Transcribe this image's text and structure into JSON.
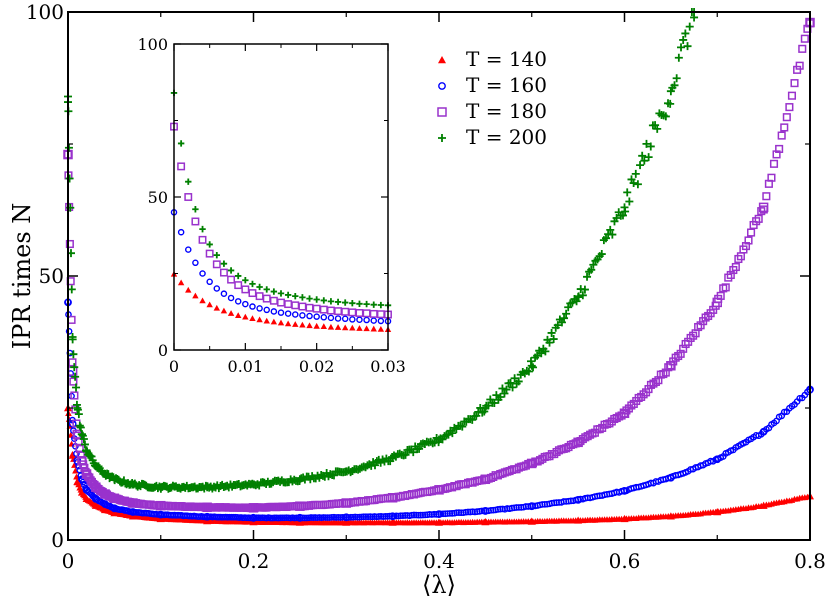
{
  "chart_data": [
    {
      "id": "main",
      "type": "scatter",
      "title": "",
      "xlabel": "⟨λ⟩",
      "ylabel": "IPR times N",
      "xlim": [
        0,
        0.8
      ],
      "ylim": [
        0,
        100
      ],
      "xticks": [
        0,
        0.2,
        0.4,
        0.6,
        0.8
      ],
      "xtick_labels": [
        "0",
        "0.2",
        "0.4",
        "0.6",
        "0.8"
      ],
      "yticks": [
        0,
        50,
        100
      ],
      "ytick_labels": [
        "0",
        "50",
        "100"
      ],
      "grid": false,
      "legend_position": "top-center",
      "series": [
        {
          "name": "T = 140",
          "color": "#ff0000",
          "marker": "triangle",
          "x": [
            0.0,
            0.005,
            0.01,
            0.015,
            0.02,
            0.03,
            0.04,
            0.05,
            0.07,
            0.1,
            0.15,
            0.2,
            0.25,
            0.3,
            0.35,
            0.4,
            0.45,
            0.5,
            0.55,
            0.6,
            0.65,
            0.7,
            0.75,
            0.8
          ],
          "y": [
            25,
            16,
            11,
            9,
            7.8,
            6.5,
            5.7,
            5.1,
            4.5,
            4.0,
            3.6,
            3.4,
            3.3,
            3.3,
            3.3,
            3.3,
            3.4,
            3.5,
            3.7,
            4.0,
            4.5,
            5.3,
            6.5,
            8.3
          ]
        },
        {
          "name": "T = 160",
          "color": "#0000ff",
          "marker": "circle",
          "x": [
            0.0,
            0.005,
            0.01,
            0.015,
            0.02,
            0.03,
            0.04,
            0.05,
            0.07,
            0.1,
            0.15,
            0.2,
            0.25,
            0.3,
            0.35,
            0.4,
            0.45,
            0.5,
            0.55,
            0.6,
            0.65,
            0.7,
            0.75,
            0.8
          ],
          "y": [
            45,
            22,
            15,
            11.5,
            9.5,
            7.8,
            6.8,
            6.0,
            5.3,
            4.8,
            4.4,
            4.2,
            4.2,
            4.3,
            4.5,
            4.9,
            5.5,
            6.4,
            7.6,
            9.3,
            11.8,
            15.3,
            20.5,
            28.5
          ]
        },
        {
          "name": "T = 180",
          "color": "#9932cc",
          "marker": "square",
          "x": [
            0.0,
            0.005,
            0.01,
            0.015,
            0.02,
            0.03,
            0.04,
            0.05,
            0.07,
            0.1,
            0.15,
            0.2,
            0.25,
            0.3,
            0.35,
            0.4,
            0.45,
            0.5,
            0.55,
            0.6,
            0.65,
            0.7,
            0.75,
            0.8
          ],
          "y": [
            73,
            32,
            20,
            15,
            12.5,
            10,
            8.7,
            7.9,
            7.0,
            6.5,
            6.2,
            6.1,
            6.4,
            7.0,
            8.0,
            9.5,
            11.5,
            14.5,
            18.5,
            24,
            33,
            45,
            63,
            98
          ]
        },
        {
          "name": "T = 200",
          "color": "#008000",
          "marker": "plus",
          "x": [
            0.0,
            0.005,
            0.01,
            0.015,
            0.02,
            0.03,
            0.04,
            0.05,
            0.07,
            0.1,
            0.15,
            0.2,
            0.25,
            0.3,
            0.35,
            0.4,
            0.45,
            0.5,
            0.55,
            0.6,
            0.65,
            0.675
          ],
          "y": [
            84,
            38,
            25,
            20,
            17,
            14,
            12.5,
            11.5,
            10.5,
            10.0,
            10.0,
            10.5,
            11.5,
            13,
            15.5,
            19,
            25,
            33,
            46,
            63,
            85,
            100
          ]
        }
      ]
    },
    {
      "id": "inset",
      "type": "scatter",
      "title": "",
      "xlabel": "",
      "ylabel": "",
      "xlim": [
        0,
        0.03
      ],
      "ylim": [
        0,
        100
      ],
      "xticks": [
        0,
        0.01,
        0.02,
        0.03
      ],
      "xtick_labels": [
        "0",
        "0.01",
        "0.02",
        "0.03"
      ],
      "yticks": [
        0,
        50,
        100
      ],
      "ytick_labels": [
        "0",
        "50",
        "100"
      ],
      "grid": false,
      "series": [
        {
          "name": "T = 140",
          "color": "#ff0000",
          "marker": "triangle",
          "x": [
            0,
            0.001,
            0.002,
            0.003,
            0.004,
            0.005,
            0.006,
            0.007,
            0.008,
            0.009,
            0.01,
            0.011,
            0.012,
            0.013,
            0.014,
            0.015,
            0.016,
            0.017,
            0.018,
            0.019,
            0.02,
            0.021,
            0.022,
            0.023,
            0.024,
            0.025,
            0.026,
            0.027,
            0.028,
            0.029,
            0.03
          ],
          "y": [
            24.8,
            22.0,
            19.6,
            17.7,
            16.1,
            14.8,
            13.7,
            12.8,
            12.0,
            11.3,
            10.8,
            10.3,
            9.9,
            9.5,
            9.2,
            8.9,
            8.6,
            8.4,
            8.2,
            8.0,
            7.8,
            7.7,
            7.5,
            7.4,
            7.3,
            7.2,
            7.1,
            7.0,
            6.9,
            6.8,
            6.7
          ]
        },
        {
          "name": "T = 160",
          "color": "#0000ff",
          "marker": "circle",
          "x": [
            0,
            0.001,
            0.002,
            0.003,
            0.004,
            0.005,
            0.006,
            0.007,
            0.008,
            0.009,
            0.01,
            0.011,
            0.012,
            0.013,
            0.014,
            0.015,
            0.016,
            0.017,
            0.018,
            0.019,
            0.02,
            0.021,
            0.022,
            0.023,
            0.024,
            0.025,
            0.026,
            0.027,
            0.028,
            0.029,
            0.03
          ],
          "y": [
            45.0,
            38.5,
            32.8,
            28.5,
            25.0,
            22.3,
            20.1,
            18.4,
            17.0,
            15.9,
            15.0,
            14.2,
            13.6,
            13.1,
            12.6,
            12.2,
            11.9,
            11.6,
            11.3,
            11.1,
            10.9,
            10.7,
            10.5,
            10.3,
            10.2,
            10.0,
            9.9,
            9.8,
            9.6,
            9.5,
            9.4
          ]
        },
        {
          "name": "T = 180",
          "color": "#9932cc",
          "marker": "square",
          "x": [
            0,
            0.001,
            0.002,
            0.003,
            0.004,
            0.005,
            0.006,
            0.007,
            0.008,
            0.009,
            0.01,
            0.011,
            0.012,
            0.013,
            0.014,
            0.015,
            0.016,
            0.017,
            0.018,
            0.019,
            0.02,
            0.021,
            0.022,
            0.023,
            0.024,
            0.025,
            0.026,
            0.027,
            0.028,
            0.029,
            0.03
          ],
          "y": [
            73.0,
            60.0,
            50.0,
            42.0,
            36.0,
            31.5,
            28.0,
            25.3,
            23.0,
            21.2,
            19.8,
            18.6,
            17.6,
            16.8,
            16.1,
            15.5,
            15.0,
            14.6,
            14.2,
            13.8,
            13.5,
            13.2,
            12.9,
            12.7,
            12.5,
            12.3,
            12.1,
            12.0,
            11.8,
            11.7,
            11.6
          ]
        },
        {
          "name": "T = 200",
          "color": "#008000",
          "marker": "plus",
          "x": [
            0,
            0.001,
            0.002,
            0.003,
            0.004,
            0.005,
            0.006,
            0.007,
            0.008,
            0.009,
            0.01,
            0.011,
            0.012,
            0.013,
            0.014,
            0.015,
            0.016,
            0.017,
            0.018,
            0.019,
            0.02,
            0.021,
            0.022,
            0.023,
            0.024,
            0.025,
            0.026,
            0.027,
            0.028,
            0.029,
            0.03
          ],
          "y": [
            84.0,
            67.5,
            55.0,
            46.0,
            39.5,
            34.5,
            31.0,
            28.2,
            26.0,
            24.2,
            22.8,
            21.6,
            20.6,
            19.8,
            19.1,
            18.5,
            18.0,
            17.6,
            17.2,
            16.8,
            16.5,
            16.2,
            15.9,
            15.7,
            15.5,
            15.3,
            15.1,
            15.0,
            14.8,
            14.7,
            14.6
          ]
        }
      ]
    }
  ]
}
